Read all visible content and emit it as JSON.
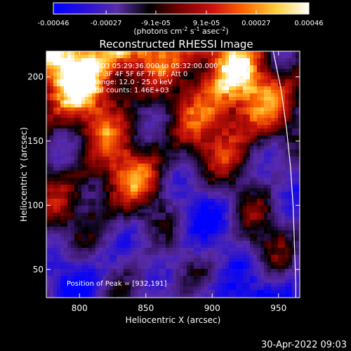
{
  "chart_data": {
    "type": "heatmap",
    "title": "Reconstructed RHESSI Image",
    "xlabel": "Heliocentric X (arcsec)",
    "ylabel": "Heliocentric Y (arcsec)",
    "xlim": [
      775,
      966
    ],
    "ylim": [
      28,
      220
    ],
    "x_ticks": [
      "800",
      "850",
      "900",
      "950"
    ],
    "x_tick_values": [
      800,
      850,
      900,
      950
    ],
    "y_ticks": [
      "50",
      "100",
      "150",
      "200"
    ],
    "y_tick_values": [
      50,
      100,
      150,
      200
    ],
    "colorbar": {
      "min": -0.00046,
      "max": 0.00046,
      "tick_labels": [
        "-0.00046",
        "-0.00027",
        "-9.1e-05",
        "9.1e-05",
        "0.00027",
        "0.00046"
      ],
      "tick_values": [
        -0.00046,
        -0.00027,
        -9.1e-05,
        9.1e-05,
        0.00027,
        0.00046
      ],
      "units_text": "(photons cm",
      "units_exp1": "-2",
      "units_mid": " s",
      "units_exp2": "-1",
      "units_mid2": " asec",
      "units_exp3": "-2",
      "units_end": ")",
      "colors": [
        "#0000ff",
        "#2a10d8",
        "#5a2da8",
        "#000000",
        "#7a0000",
        "#d01010",
        "#ff6a00",
        "#ffd040",
        "#ffffff"
      ]
    },
    "annotations": [
      "30-Mar-2003 05:29:36.000 to 05:32:00.000",
      "Detectors: 3F 4F 5F 6F 7F 8F, Att 0",
      "Energy Range: 12.0 - 25.0 keV",
      "Clean     Total counts: 1.46E+03"
    ],
    "peak_label": "Position of Peak = [932,191]",
    "peak": [
      932,
      191
    ],
    "limb_curve": [
      [
        946,
        220
      ],
      [
        952,
        190
      ],
      [
        956,
        160
      ],
      [
        959,
        130
      ],
      [
        961,
        100
      ],
      [
        962,
        70
      ],
      [
        963,
        40
      ],
      [
        963,
        28
      ]
    ]
  },
  "footer_date": "30-Apr-2022 09:03"
}
